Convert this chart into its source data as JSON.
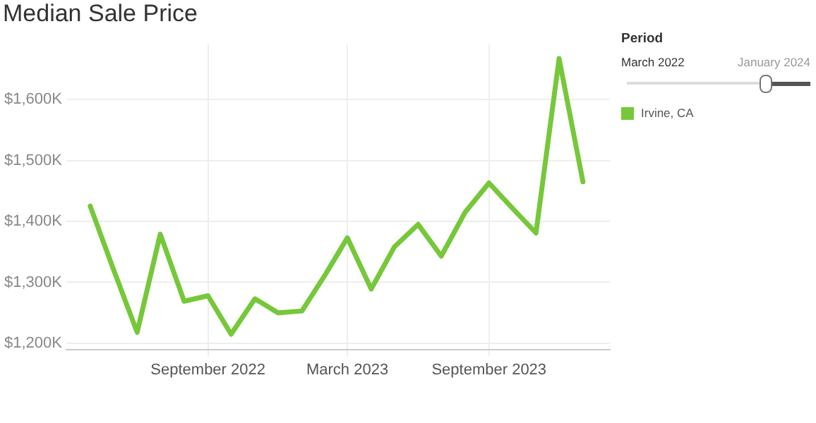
{
  "chart_data": {
    "type": "line",
    "title": "Median Sale Price",
    "x": [
      "2022-04-01",
      "2022-05-01",
      "2022-06-01",
      "2022-07-01",
      "2022-08-01",
      "2022-09-01",
      "2022-10-01",
      "2022-11-01",
      "2022-12-01",
      "2023-01-01",
      "2023-02-01",
      "2023-03-01",
      "2023-04-01",
      "2023-05-01",
      "2023-06-01",
      "2023-07-01",
      "2023-08-01",
      "2023-09-01",
      "2023-10-01",
      "2023-11-01",
      "2023-12-01",
      "2024-01-01"
    ],
    "series": [
      {
        "name": "Irvine, CA",
        "color": "#76c83a",
        "values": [
          1425,
          1322,
          1218,
          1379,
          1269,
          1278,
          1215,
          1273,
          1250,
          1253,
          1314,
          1373,
          1289,
          1358,
          1395,
          1343,
          1415,
          1463,
          1422,
          1381,
          1667,
          1465
        ]
      }
    ],
    "xlim": [
      "2022-03-01",
      "2024-02-05"
    ],
    "xticks": [
      {
        "value": "2022-09-01",
        "label": "September 2022"
      },
      {
        "value": "2023-03-01",
        "label": "March 2023"
      },
      {
        "value": "2023-09-01",
        "label": "September 2023"
      }
    ],
    "ylim": [
      1190,
      1690
    ],
    "yticks": [
      {
        "value": 1200,
        "label": "$1,200K"
      },
      {
        "value": 1300,
        "label": "$1,300K"
      },
      {
        "value": 1400,
        "label": "$1,400K"
      },
      {
        "value": 1500,
        "label": "$1,500K"
      },
      {
        "value": 1600,
        "label": "$1,600K"
      }
    ],
    "grid": true,
    "legend": "right",
    "marker": "none",
    "line_style": "solid",
    "annotations": [
      "Period",
      "March 2022",
      "January 2024"
    ]
  }
}
